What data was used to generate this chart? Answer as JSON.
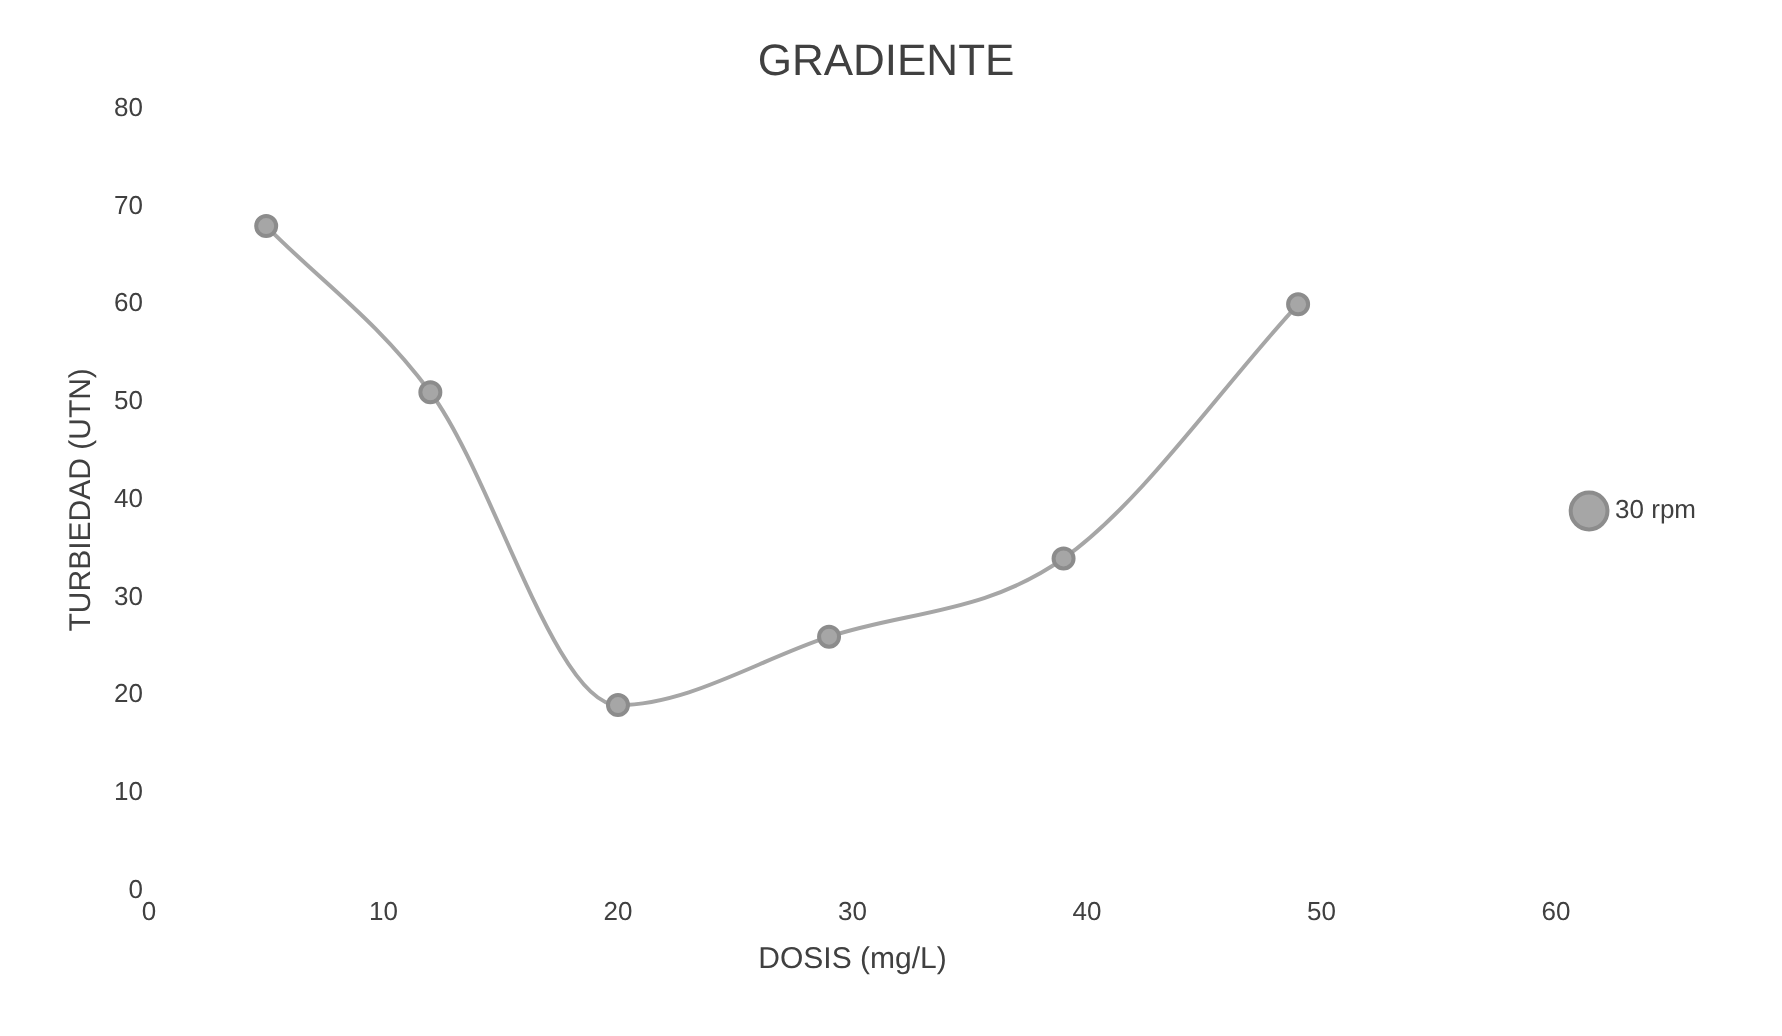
{
  "chart_data": {
    "type": "line",
    "title": "GRADIENTE",
    "xlabel": "DOSIS (mg/L)",
    "ylabel": "TURBIEDAD (UTN)",
    "x": [
      5,
      12,
      20,
      29,
      39,
      49
    ],
    "series": [
      {
        "name": "30 rpm",
        "color": "#a6a6a6",
        "values": [
          68,
          51,
          19,
          26,
          34,
          60
        ]
      }
    ],
    "xlim": [
      0,
      60
    ],
    "xticks": [
      0,
      10,
      20,
      30,
      40,
      50,
      60
    ],
    "ylim": [
      0,
      80
    ],
    "yticks": [
      0,
      10,
      20,
      30,
      40,
      50,
      60,
      70,
      80
    ],
    "grid": false,
    "legend": "right",
    "marker": "circle",
    "line_style": "solid"
  }
}
